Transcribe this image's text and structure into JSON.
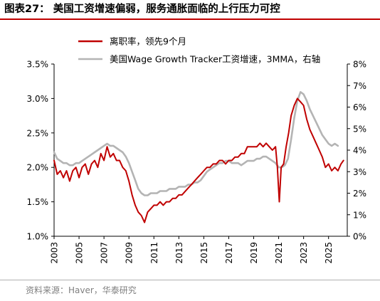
{
  "header": {
    "title": "图表27： 美国工资增速偏弱，服务通胀面临的上行压力可控"
  },
  "footer": {
    "source": "资料来源：Haver，华泰研究"
  },
  "chart_data": {
    "type": "line",
    "legend_position": "top-left",
    "grid": false,
    "x_axis": {
      "range": [
        2003.0,
        2026.5
      ],
      "tick_labels": [
        "2003",
        "2005",
        "2007",
        "2009",
        "2011",
        "2013",
        "2015",
        "2017",
        "2019",
        "2021",
        "2023",
        "2025"
      ],
      "label_orientation": "vertical"
    },
    "y_left": {
      "range": [
        1.0,
        3.5
      ],
      "tick_labels": [
        "1.0%",
        "1.5%",
        "2.0%",
        "2.5%",
        "3.0%",
        "3.5%"
      ]
    },
    "y_right": {
      "range": [
        0,
        8
      ],
      "tick_labels": [
        "0%",
        "1%",
        "2%",
        "3%",
        "4%",
        "5%",
        "6%",
        "7%",
        "8%"
      ]
    },
    "series": [
      {
        "name": "离职率，领先9个月",
        "axis": "left",
        "color": "#c00000",
        "points": [
          [
            2003.0,
            2.1
          ],
          [
            2003.25,
            1.9
          ],
          [
            2003.5,
            1.95
          ],
          [
            2003.75,
            1.85
          ],
          [
            2004.0,
            1.95
          ],
          [
            2004.25,
            1.8
          ],
          [
            2004.5,
            1.95
          ],
          [
            2004.75,
            2.0
          ],
          [
            2005.0,
            1.85
          ],
          [
            2005.25,
            2.0
          ],
          [
            2005.5,
            2.05
          ],
          [
            2005.75,
            1.9
          ],
          [
            2006.0,
            2.05
          ],
          [
            2006.25,
            2.1
          ],
          [
            2006.5,
            2.0
          ],
          [
            2006.75,
            2.2
          ],
          [
            2007.0,
            2.1
          ],
          [
            2007.25,
            2.3
          ],
          [
            2007.5,
            2.15
          ],
          [
            2007.75,
            2.2
          ],
          [
            2008.0,
            2.1
          ],
          [
            2008.25,
            2.1
          ],
          [
            2008.5,
            2.0
          ],
          [
            2008.75,
            1.95
          ],
          [
            2009.0,
            1.8
          ],
          [
            2009.25,
            1.6
          ],
          [
            2009.5,
            1.45
          ],
          [
            2009.75,
            1.35
          ],
          [
            2010.0,
            1.3
          ],
          [
            2010.25,
            1.2
          ],
          [
            2010.5,
            1.35
          ],
          [
            2010.75,
            1.4
          ],
          [
            2011.0,
            1.45
          ],
          [
            2011.25,
            1.45
          ],
          [
            2011.5,
            1.5
          ],
          [
            2011.75,
            1.45
          ],
          [
            2012.0,
            1.5
          ],
          [
            2012.25,
            1.5
          ],
          [
            2012.5,
            1.55
          ],
          [
            2012.75,
            1.55
          ],
          [
            2013.0,
            1.6
          ],
          [
            2013.25,
            1.6
          ],
          [
            2013.5,
            1.65
          ],
          [
            2013.75,
            1.7
          ],
          [
            2014.0,
            1.75
          ],
          [
            2014.25,
            1.8
          ],
          [
            2014.5,
            1.85
          ],
          [
            2014.75,
            1.9
          ],
          [
            2015.0,
            1.95
          ],
          [
            2015.25,
            2.0
          ],
          [
            2015.5,
            2.0
          ],
          [
            2015.75,
            2.05
          ],
          [
            2016.0,
            2.05
          ],
          [
            2016.25,
            2.1
          ],
          [
            2016.5,
            2.1
          ],
          [
            2016.75,
            2.05
          ],
          [
            2017.0,
            2.1
          ],
          [
            2017.25,
            2.1
          ],
          [
            2017.5,
            2.15
          ],
          [
            2017.75,
            2.15
          ],
          [
            2018.0,
            2.2
          ],
          [
            2018.25,
            2.2
          ],
          [
            2018.5,
            2.3
          ],
          [
            2018.75,
            2.3
          ],
          [
            2019.0,
            2.3
          ],
          [
            2019.25,
            2.3
          ],
          [
            2019.5,
            2.35
          ],
          [
            2019.75,
            2.3
          ],
          [
            2020.0,
            2.35
          ],
          [
            2020.25,
            2.3
          ],
          [
            2020.5,
            2.25
          ],
          [
            2020.75,
            2.3
          ],
          [
            2020.9,
            2.0
          ],
          [
            2021.05,
            1.5
          ],
          [
            2021.2,
            2.0
          ],
          [
            2021.4,
            2.05
          ],
          [
            2021.6,
            2.3
          ],
          [
            2021.8,
            2.5
          ],
          [
            2022.0,
            2.75
          ],
          [
            2022.25,
            2.9
          ],
          [
            2022.5,
            3.0
          ],
          [
            2022.75,
            2.95
          ],
          [
            2023.0,
            2.9
          ],
          [
            2023.25,
            2.7
          ],
          [
            2023.5,
            2.55
          ],
          [
            2023.75,
            2.45
          ],
          [
            2024.0,
            2.35
          ],
          [
            2024.25,
            2.25
          ],
          [
            2024.5,
            2.15
          ],
          [
            2024.75,
            2.0
          ],
          [
            2025.0,
            2.05
          ],
          [
            2025.25,
            1.95
          ],
          [
            2025.5,
            2.0
          ],
          [
            2025.75,
            1.95
          ],
          [
            2026.0,
            2.05
          ],
          [
            2026.2,
            2.1
          ]
        ]
      },
      {
        "name": "美国Wage Growth Tracker工资增速，3MMA，右轴",
        "axis": "right",
        "color": "#b4b4b4",
        "points": [
          [
            2003.0,
            3.9
          ],
          [
            2003.25,
            3.6
          ],
          [
            2003.5,
            3.5
          ],
          [
            2003.75,
            3.4
          ],
          [
            2004.0,
            3.4
          ],
          [
            2004.25,
            3.3
          ],
          [
            2004.5,
            3.3
          ],
          [
            2004.75,
            3.4
          ],
          [
            2005.0,
            3.4
          ],
          [
            2005.25,
            3.5
          ],
          [
            2005.5,
            3.6
          ],
          [
            2005.75,
            3.7
          ],
          [
            2006.0,
            3.8
          ],
          [
            2006.25,
            3.9
          ],
          [
            2006.5,
            4.0
          ],
          [
            2006.75,
            4.1
          ],
          [
            2007.0,
            4.2
          ],
          [
            2007.25,
            4.3
          ],
          [
            2007.5,
            4.2
          ],
          [
            2007.75,
            4.2
          ],
          [
            2008.0,
            4.1
          ],
          [
            2008.25,
            4.0
          ],
          [
            2008.5,
            3.9
          ],
          [
            2008.75,
            3.7
          ],
          [
            2009.0,
            3.4
          ],
          [
            2009.25,
            3.0
          ],
          [
            2009.5,
            2.6
          ],
          [
            2009.75,
            2.2
          ],
          [
            2010.0,
            2.0
          ],
          [
            2010.25,
            1.9
          ],
          [
            2010.5,
            1.9
          ],
          [
            2010.75,
            2.0
          ],
          [
            2011.0,
            2.0
          ],
          [
            2011.25,
            2.0
          ],
          [
            2011.5,
            2.1
          ],
          [
            2011.75,
            2.1
          ],
          [
            2012.0,
            2.1
          ],
          [
            2012.25,
            2.2
          ],
          [
            2012.5,
            2.2
          ],
          [
            2012.75,
            2.2
          ],
          [
            2013.0,
            2.3
          ],
          [
            2013.25,
            2.3
          ],
          [
            2013.5,
            2.3
          ],
          [
            2013.75,
            2.4
          ],
          [
            2014.0,
            2.4
          ],
          [
            2014.25,
            2.5
          ],
          [
            2014.5,
            2.5
          ],
          [
            2014.75,
            2.6
          ],
          [
            2015.0,
            2.8
          ],
          [
            2015.25,
            3.0
          ],
          [
            2015.5,
            3.1
          ],
          [
            2015.75,
            3.2
          ],
          [
            2016.0,
            3.3
          ],
          [
            2016.25,
            3.4
          ],
          [
            2016.5,
            3.4
          ],
          [
            2016.75,
            3.5
          ],
          [
            2017.0,
            3.5
          ],
          [
            2017.25,
            3.4
          ],
          [
            2017.5,
            3.4
          ],
          [
            2017.75,
            3.4
          ],
          [
            2018.0,
            3.3
          ],
          [
            2018.25,
            3.4
          ],
          [
            2018.5,
            3.5
          ],
          [
            2018.75,
            3.5
          ],
          [
            2019.0,
            3.5
          ],
          [
            2019.25,
            3.6
          ],
          [
            2019.5,
            3.6
          ],
          [
            2019.75,
            3.7
          ],
          [
            2020.0,
            3.7
          ],
          [
            2020.25,
            3.6
          ],
          [
            2020.5,
            3.5
          ],
          [
            2020.75,
            3.4
          ],
          [
            2021.0,
            3.2
          ],
          [
            2021.25,
            3.2
          ],
          [
            2021.5,
            3.3
          ],
          [
            2021.75,
            3.6
          ],
          [
            2022.0,
            4.5
          ],
          [
            2022.25,
            5.5
          ],
          [
            2022.5,
            6.3
          ],
          [
            2022.75,
            6.7
          ],
          [
            2023.0,
            6.6
          ],
          [
            2023.25,
            6.3
          ],
          [
            2023.5,
            5.9
          ],
          [
            2023.75,
            5.6
          ],
          [
            2024.0,
            5.3
          ],
          [
            2024.25,
            5.0
          ],
          [
            2024.5,
            4.7
          ],
          [
            2024.75,
            4.5
          ],
          [
            2025.0,
            4.3
          ],
          [
            2025.25,
            4.2
          ],
          [
            2025.5,
            4.3
          ],
          [
            2025.75,
            4.2
          ]
        ]
      }
    ]
  }
}
